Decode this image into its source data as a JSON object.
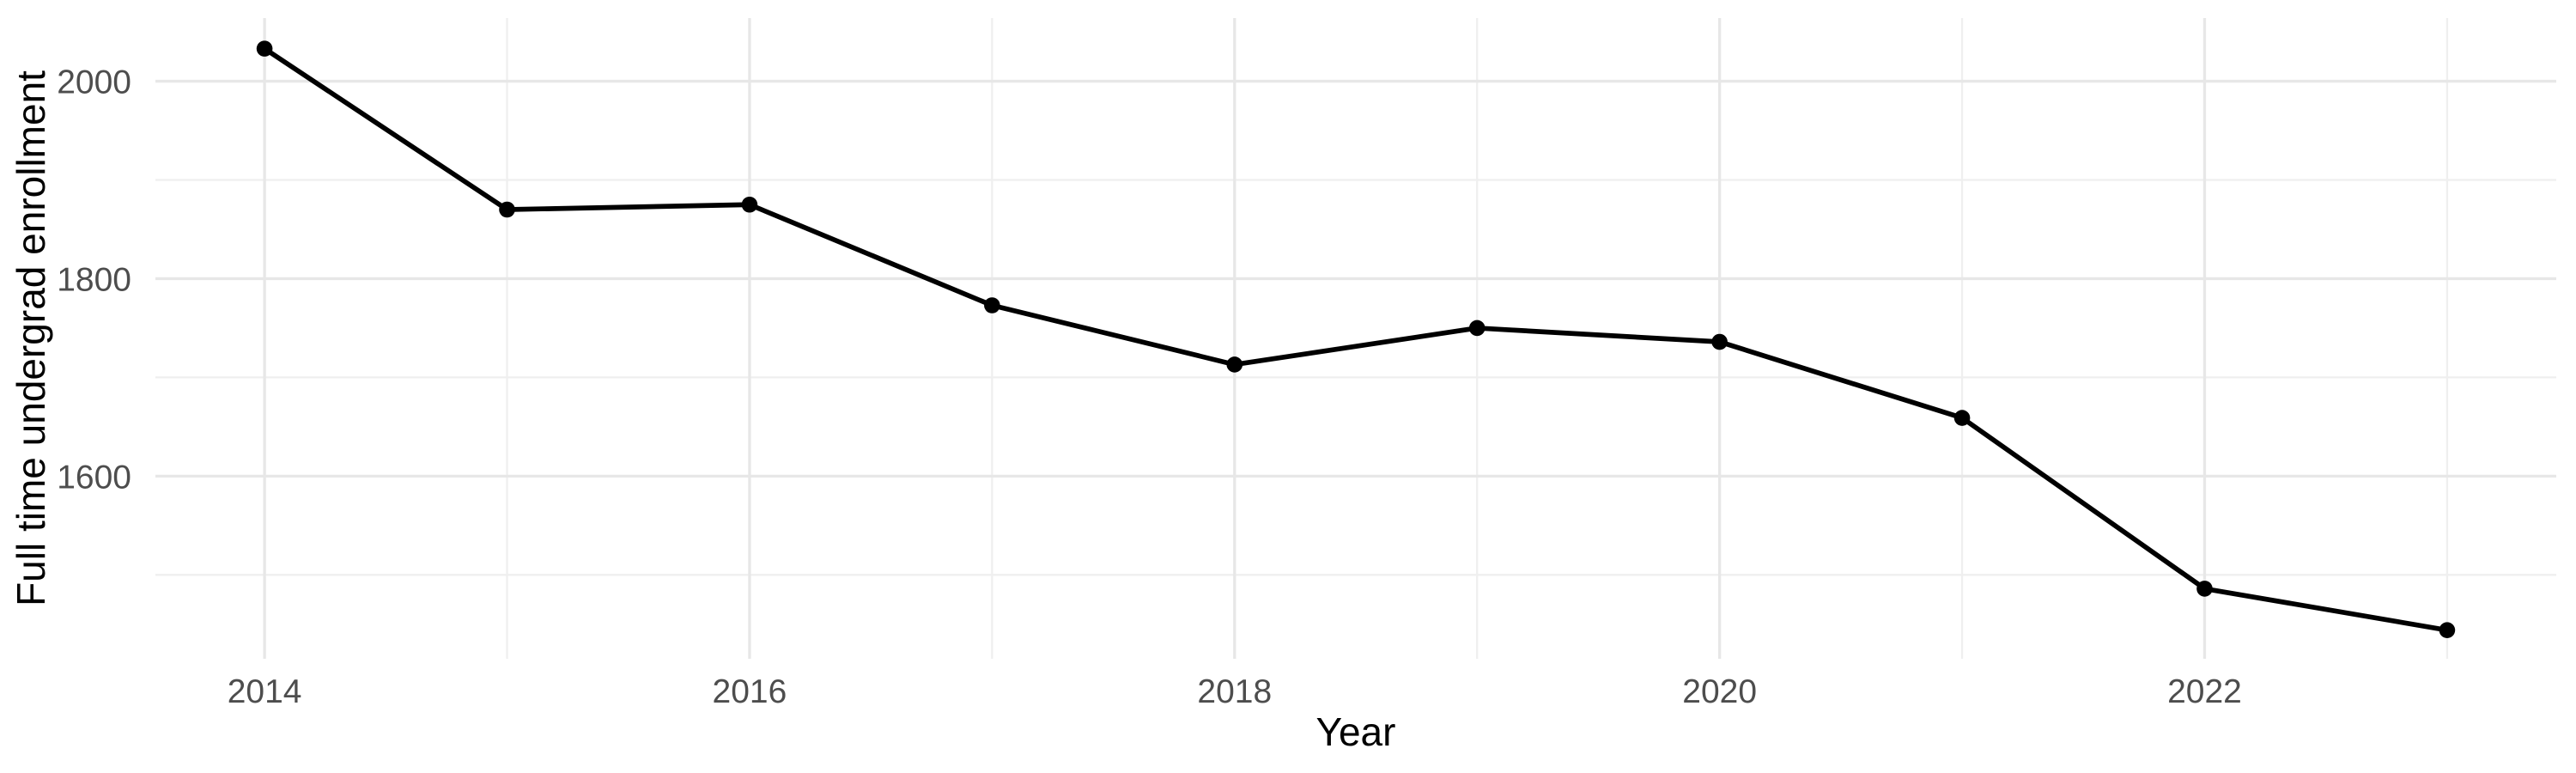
{
  "chart_data": {
    "type": "line",
    "title": "",
    "xlabel": "Year",
    "ylabel": "Full time undergrad enrollment",
    "x": [
      2014,
      2015,
      2016,
      2017,
      2018,
      2019,
      2020,
      2021,
      2022,
      2023
    ],
    "values": [
      2033,
      1870,
      1875,
      1773,
      1713,
      1750,
      1736,
      1659,
      1486,
      1444
    ],
    "series_name": "Full time undergrad enrollment",
    "x_major_ticks": [
      2014,
      2016,
      2018,
      2020,
      2022
    ],
    "x_minor_ticks": [
      2015,
      2017,
      2019,
      2021,
      2023
    ],
    "y_major_ticks": [
      2000,
      1800,
      1600
    ],
    "y_minor_ticks": [
      1900,
      1700,
      1500
    ],
    "xlim": [
      2013.55,
      2023.45
    ],
    "ylim": [
      1415,
      2064
    ],
    "grid": "on",
    "legend": "none",
    "colors": {
      "line": "#000000",
      "point": "#000000",
      "tick_text": "#4d4d4d",
      "title_text": "#000000",
      "grid_major": "#e7e7e7",
      "grid_minor": "#efefef",
      "background": "#ffffff"
    }
  }
}
